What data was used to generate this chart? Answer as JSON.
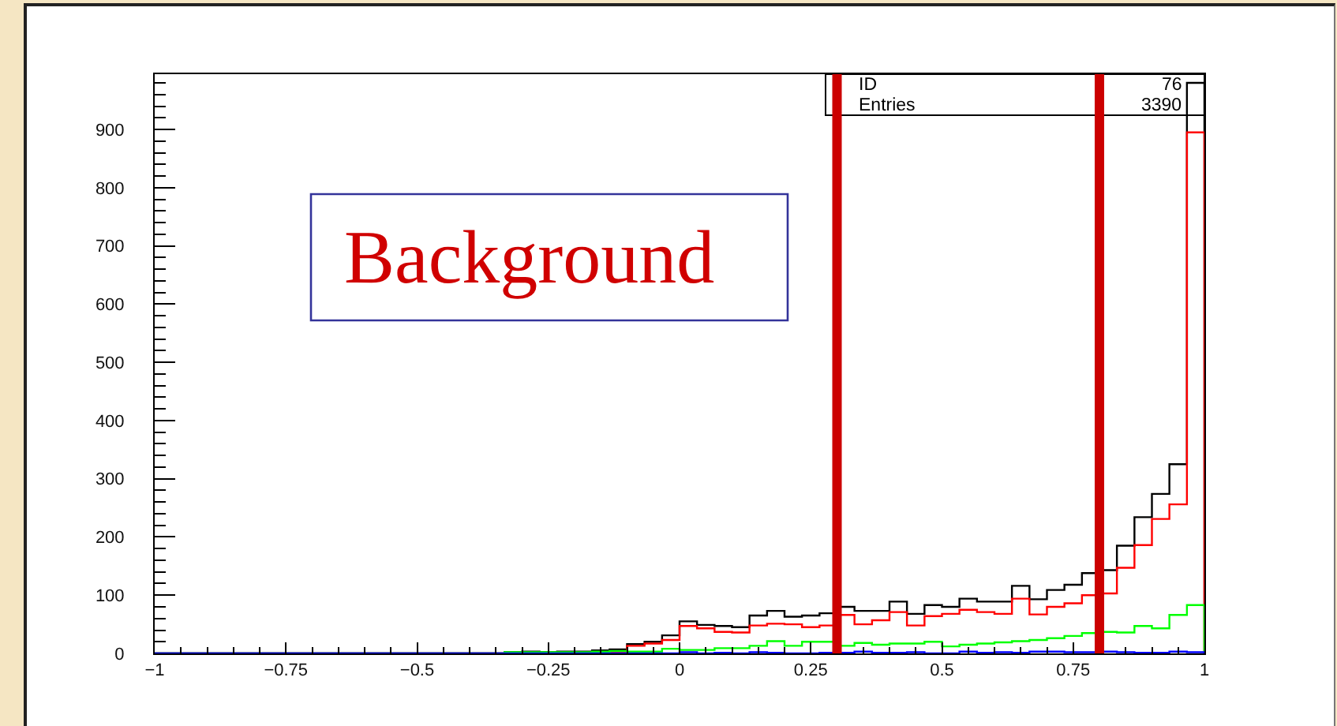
{
  "chart_data": {
    "type": "histogram",
    "bins": [
      -1,
      -0.9667,
      -0.9333,
      -0.9,
      -0.8667,
      -0.8333,
      -0.8,
      -0.7667,
      -0.7333,
      -0.7,
      -0.6667,
      -0.6333,
      -0.6,
      -0.5667,
      -0.5333,
      -0.5,
      -0.4667,
      -0.4333,
      -0.4,
      -0.3667,
      -0.3333,
      -0.3,
      -0.2667,
      -0.2333,
      -0.2,
      -0.1667,
      -0.1333,
      -0.1,
      -0.0667,
      -0.0333,
      0,
      0.0333,
      0.0667,
      0.1,
      0.1333,
      0.1667,
      0.2,
      0.2333,
      0.2667,
      0.3,
      0.3333,
      0.3667,
      0.4,
      0.4333,
      0.4667,
      0.5,
      0.5333,
      0.5667,
      0.6,
      0.6333,
      0.6667,
      0.7,
      0.7333,
      0.7667,
      0.8,
      0.8333,
      0.8667,
      0.9,
      0.9333,
      0.9667,
      1
    ],
    "series": [
      {
        "color": "#000000",
        "values": [
          0,
          0,
          0,
          0,
          0,
          0,
          0,
          0,
          0,
          0,
          0,
          0,
          0,
          0,
          0,
          0,
          0,
          0,
          0,
          0,
          2,
          3,
          2,
          3,
          3,
          5,
          7,
          16,
          20,
          31,
          55,
          49,
          47,
          45,
          65,
          73,
          63,
          65,
          69,
          80,
          73,
          73,
          89,
          68,
          83,
          80,
          94,
          89,
          89,
          116,
          93,
          109,
          118,
          138,
          143,
          185,
          234,
          274,
          325,
          980
        ]
      },
      {
        "color": "#ff0000",
        "values": [
          0,
          0,
          0,
          0,
          0,
          0,
          0,
          0,
          0,
          0,
          0,
          0,
          0,
          0,
          0,
          0,
          0,
          0,
          0,
          0,
          0,
          1,
          0,
          1,
          1,
          2,
          3,
          13,
          17,
          23,
          47,
          43,
          37,
          36,
          48,
          51,
          50,
          45,
          48,
          66,
          50,
          57,
          71,
          48,
          64,
          68,
          75,
          71,
          68,
          94,
          67,
          80,
          86,
          100,
          103,
          147,
          186,
          231,
          256,
          895
        ]
      },
      {
        "color": "#00ff00",
        "values": [
          0,
          0,
          0,
          0,
          0,
          0,
          0,
          0,
          0,
          0,
          0,
          0,
          0,
          0,
          0,
          0,
          0,
          0,
          0,
          0,
          2,
          2,
          2,
          2,
          2,
          3,
          4,
          3,
          3,
          8,
          6,
          6,
          9,
          9,
          13,
          21,
          13,
          20,
          20,
          13,
          18,
          15,
          17,
          17,
          20,
          12,
          15,
          17,
          19,
          21,
          23,
          26,
          30,
          35,
          37,
          36,
          47,
          43,
          66,
          83
        ]
      },
      {
        "color": "#0000ff",
        "values": [
          0,
          0,
          0,
          0,
          0,
          0,
          0,
          0,
          0,
          0,
          0,
          0,
          0,
          0,
          0,
          0,
          0,
          0,
          0,
          0,
          0,
          0,
          0,
          0,
          0,
          0,
          0,
          0,
          0,
          0,
          2,
          0,
          1,
          0,
          2,
          1,
          0,
          0,
          1,
          1,
          3,
          1,
          1,
          2,
          0,
          0,
          3,
          1,
          2,
          1,
          3,
          3,
          2,
          2,
          3,
          2,
          1,
          1,
          3,
          2
        ]
      }
    ],
    "xlim": [
      -1,
      1
    ],
    "xticks": [
      -1,
      {
        "value": -0.95,
        "label": null
      },
      {
        "value": -0.9,
        "label": null
      },
      {
        "value": -0.85,
        "label": null
      },
      {
        "value": -0.8,
        "label": null
      },
      -0.75,
      {
        "value": -0.7,
        "label": null
      },
      {
        "value": -0.65,
        "label": null
      },
      {
        "value": -0.6,
        "label": null
      },
      {
        "value": -0.55,
        "label": null
      },
      -0.5,
      {
        "value": -0.45,
        "label": null
      },
      {
        "value": -0.4,
        "label": null
      },
      {
        "value": -0.35,
        "label": null
      },
      {
        "value": -0.3,
        "label": null
      },
      -0.25,
      {
        "value": -0.2,
        "label": null
      },
      {
        "value": -0.15,
        "label": null
      },
      {
        "value": -0.1,
        "label": null
      },
      {
        "value": -0.05,
        "label": null
      },
      0,
      {
        "value": 0.05,
        "label": null
      },
      {
        "value": 0.1,
        "label": null
      },
      {
        "value": 0.15,
        "label": null
      },
      {
        "value": 0.2,
        "label": null
      },
      0.25,
      {
        "value": 0.3,
        "label": null
      },
      {
        "value": 0.35,
        "label": null
      },
      {
        "value": 0.4,
        "label": null
      },
      {
        "value": 0.45,
        "label": null
      },
      0.5,
      {
        "value": 0.55,
        "label": null
      },
      {
        "value": 0.6,
        "label": null
      },
      {
        "value": 0.65,
        "label": null
      },
      {
        "value": 0.7,
        "label": null
      },
      0.75,
      {
        "value": 0.8,
        "label": null
      },
      {
        "value": 0.85,
        "label": null
      },
      {
        "value": 0.9,
        "label": null
      },
      {
        "value": 0.95,
        "label": null
      },
      1
    ],
    "ylim": [
      0,
      995
    ],
    "yticks": [
      0,
      {
        "value": 20,
        "label": null
      },
      {
        "value": 40,
        "label": null
      },
      {
        "value": 60,
        "label": null
      },
      {
        "value": 80,
        "label": null
      },
      100,
      {
        "value": 120,
        "label": null
      },
      {
        "value": 140,
        "label": null
      },
      {
        "value": 160,
        "label": null
      },
      {
        "value": 180,
        "label": null
      },
      200,
      {
        "value": 220,
        "label": null
      },
      {
        "value": 240,
        "label": null
      },
      {
        "value": 260,
        "label": null
      },
      {
        "value": 280,
        "label": null
      },
      300,
      {
        "value": 320,
        "label": null
      },
      {
        "value": 340,
        "label": null
      },
      {
        "value": 360,
        "label": null
      },
      {
        "value": 380,
        "label": null
      },
      400,
      {
        "value": 420,
        "label": null
      },
      {
        "value": 440,
        "label": null
      },
      {
        "value": 460,
        "label": null
      },
      {
        "value": 480,
        "label": null
      },
      500,
      {
        "value": 520,
        "label": null
      },
      {
        "value": 540,
        "label": null
      },
      {
        "value": 560,
        "label": null
      },
      {
        "value": 580,
        "label": null
      },
      600,
      {
        "value": 620,
        "label": null
      },
      {
        "value": 640,
        "label": null
      },
      {
        "value": 660,
        "label": null
      },
      {
        "value": 680,
        "label": null
      },
      700,
      {
        "value": 720,
        "label": null
      },
      {
        "value": 740,
        "label": null
      },
      {
        "value": 760,
        "label": null
      },
      {
        "value": 780,
        "label": null
      },
      800,
      {
        "value": 820,
        "label": null
      },
      {
        "value": 840,
        "label": null
      },
      {
        "value": 860,
        "label": null
      },
      {
        "value": 880,
        "label": null
      },
      900,
      {
        "value": 920,
        "label": null
      },
      {
        "value": 940,
        "label": null
      },
      {
        "value": 960,
        "label": null
      },
      {
        "value": 980,
        "label": null
      }
    ],
    "ref_lines": [
      {
        "axis": "x",
        "value": 0.3,
        "color": "#cc0000"
      },
      {
        "axis": "x",
        "value": 0.8,
        "color": "#cc0000"
      }
    ],
    "annotations": [
      "Background",
      "ID",
      "76",
      "Entries",
      "3390"
    ]
  }
}
